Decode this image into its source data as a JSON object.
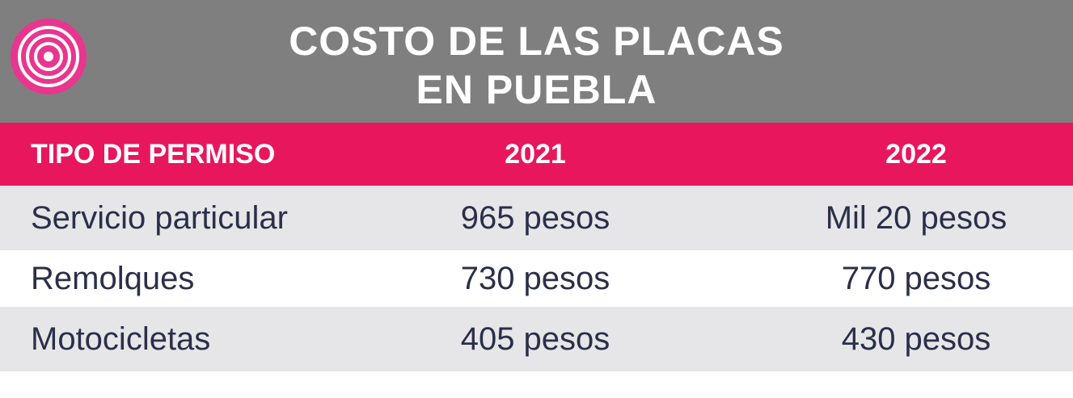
{
  "header": {
    "title_lines": [
      "COSTO DE LAS PLACAS",
      "EN PUEBLA"
    ]
  },
  "table": {
    "columns": [
      "TIPO DE PERMISO",
      "2021",
      "2022"
    ],
    "rows": [
      [
        "Servicio particular",
        "965 pesos",
        "Mil 20 pesos"
      ],
      [
        "Remolques",
        "730 pesos",
        "770 pesos"
      ],
      [
        "Motocicletas",
        "405 pesos",
        "430 pesos"
      ]
    ]
  }
}
